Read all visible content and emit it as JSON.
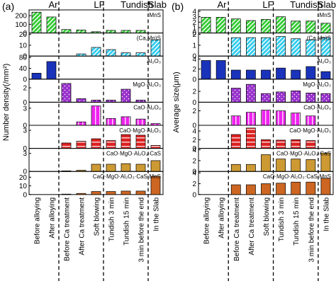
{
  "stages": [
    {
      "name": "Ar"
    },
    {
      "name": "LF"
    },
    {
      "name": "Tundish"
    },
    {
      "name": "Slab"
    }
  ],
  "categories": [
    "Before alloying",
    "After alloying",
    "Before Ca treatment",
    "After Ca treatment",
    "Soft blowing",
    "Tundish 3 min",
    "Tundish 15 min",
    "3 min before the end",
    "In the Slab"
  ],
  "inclusions": [
    {
      "label": "MnS",
      "color": "#33cc33",
      "pattern": "hatch-diag"
    },
    {
      "label": "(Ca,Mn)S",
      "color": "#33ccee",
      "pattern": "hatch-diag"
    },
    {
      "label": "Al₂O₃",
      "color": "#1a33bb",
      "pattern": "solid"
    },
    {
      "label": "MgO·Al₂O₃",
      "color": "#9933cc",
      "pattern": "dots"
    },
    {
      "label": "CaO·Al₂O₃",
      "color": "#ee22ee",
      "pattern": "vlines"
    },
    {
      "label": "CaO·MgO·Al₂O₃",
      "color": "#dd2222",
      "pattern": "hlines"
    },
    {
      "label": "CaO·MgO·Al₂O₃·CaS",
      "color": "#cc9933",
      "pattern": "solid"
    },
    {
      "label": "CaO·MgO·Al₂O₃·CaS·MnS",
      "color": "#cc6622",
      "pattern": "solid"
    }
  ],
  "chart_data": [
    {
      "type": "bar",
      "panel_label": "(a)",
      "ylabel": "Number density(/mm²)",
      "categories": [
        "Before alloying",
        "After alloying",
        "Before Ca treatment",
        "After Ca treatment",
        "Soft blowing",
        "Tundish 3 min",
        "Tundish 15 min",
        "3 min before the end",
        "In the Slab"
      ],
      "series": [
        {
          "name": "MnS",
          "values": [
            240,
            185,
            40,
            35,
            15,
            30,
            30,
            30,
            null
          ],
          "ylim": [
            0,
            250
          ],
          "ticks": [
            0,
            100,
            200
          ]
        },
        {
          "name": "(Ca,Mn)S",
          "values": [
            null,
            null,
            null,
            2,
            8,
            6,
            3,
            3,
            15
          ],
          "ylim": [
            0,
            20
          ],
          "ticks": [
            0,
            10,
            20
          ]
        },
        {
          "name": "Al₂O₃",
          "values": [
            22,
            65,
            null,
            null,
            null,
            null,
            null,
            null,
            null
          ],
          "ylim": [
            0,
            80
          ],
          "ticks": [
            0,
            40,
            80
          ]
        },
        {
          "name": "MgO·Al₂O₃",
          "values": [
            null,
            null,
            2.6,
            0.5,
            0.3,
            0.3,
            1.8,
            0.3,
            null
          ],
          "ylim": [
            0,
            3
          ],
          "ticks": [
            0,
            2
          ]
        },
        {
          "name": "CaO·Al₂O₃",
          "values": [
            null,
            null,
            null,
            0.6,
            3.4,
            1.2,
            1.5,
            1.1,
            0.3
          ],
          "ylim": [
            0,
            3.8
          ],
          "ticks": [
            0,
            3
          ]
        },
        {
          "name": "CaO·MgO·Al₂O₃",
          "values": [
            null,
            null,
            0.9,
            1.2,
            1.6,
            1.3,
            2.3,
            2.2,
            0.5
          ],
          "ylim": [
            0,
            3.6
          ],
          "ticks": [
            0,
            3
          ]
        },
        {
          "name": "CaO·MgO·Al₂O₃·CaS",
          "values": [
            null,
            null,
            0.1,
            0.2,
            1.2,
            1.2,
            1.3,
            1.2,
            1.8
          ],
          "ylim": [
            0,
            3.6
          ],
          "ticks": [
            0,
            3
          ]
        },
        {
          "name": "CaO·MgO·Al₂O₃·CaS·MnS",
          "values": [
            null,
            null,
            0.5,
            1.3,
            3.5,
            3.5,
            4,
            4,
            21
          ],
          "ylim": [
            0,
            25
          ],
          "ticks": [
            0,
            10,
            20
          ]
        }
      ]
    },
    {
      "type": "bar",
      "panel_label": "(b)",
      "ylabel": "Average size(μm)",
      "categories": [
        "Before alloying",
        "After alloying",
        "Before Ca treatment",
        "After Ca treatment",
        "Soft blowing",
        "Tundish 3 min",
        "Tundish 15 min",
        "3 min before the end",
        "In the Slab"
      ],
      "series": [
        {
          "name": "MnS",
          "values": [
            2.9,
            2.9,
            2.6,
            2.3,
            2.5,
            3.0,
            2.2,
            2.2,
            1.8
          ],
          "ylim": [
            0,
            4
          ],
          "ticks": [
            0,
            1,
            2,
            3,
            4
          ]
        },
        {
          "name": "(Ca,Mn)S",
          "values": [
            null,
            null,
            1.7,
            1.7,
            1.7,
            1.8,
            1.6,
            1.5,
            1.7
          ],
          "ylim": [
            0,
            2
          ],
          "ticks": [
            0,
            1,
            2
          ]
        },
        {
          "name": "Al₂O₃",
          "values": [
            3.7,
            3.7,
            1.8,
            1.8,
            1.8,
            2.2,
            1.8,
            2.5,
            1.5
          ],
          "ylim": [
            0,
            4.3
          ],
          "ticks": [
            0,
            2,
            4
          ]
        },
        {
          "name": "MgO·Al₂O₃",
          "values": [
            null,
            null,
            2.6,
            3.3,
            1.6,
            1.9,
            2.1,
            1.7,
            1.6
          ],
          "ylim": [
            0,
            4
          ],
          "ticks": [
            0,
            2
          ]
        },
        {
          "name": "CaO·Al₂O₃",
          "values": [
            null,
            null,
            1.3,
            1.8,
            2.1,
            2.0,
            1.7,
            1.3,
            null
          ],
          "ylim": [
            0,
            3
          ],
          "ticks": [
            0,
            2
          ]
        },
        {
          "name": "CaO·MgO·Al₂O₃",
          "values": [
            null,
            null,
            3.2,
            4.7,
            2.0,
            1.9,
            2.0,
            1.8,
            null
          ],
          "ylim": [
            0,
            5
          ],
          "ticks": [
            0,
            2,
            4
          ]
        },
        {
          "name": "CaO·MgO·Al₂O₃·CaS",
          "values": [
            null,
            null,
            1.3,
            1.3,
            3.1,
            2.3,
            2.3,
            2.2,
            3.4
          ],
          "ylim": [
            0,
            4
          ],
          "ticks": [
            0,
            2,
            4
          ]
        },
        {
          "name": "CaO·MgO·Al₂O₃·CaS·MnS",
          "values": [
            null,
            null,
            1.8,
            1.8,
            2.0,
            2.1,
            2.3,
            2.3,
            3.0
          ],
          "ylim": [
            0,
            4
          ],
          "ticks": [
            0,
            2,
            4
          ]
        }
      ]
    }
  ]
}
